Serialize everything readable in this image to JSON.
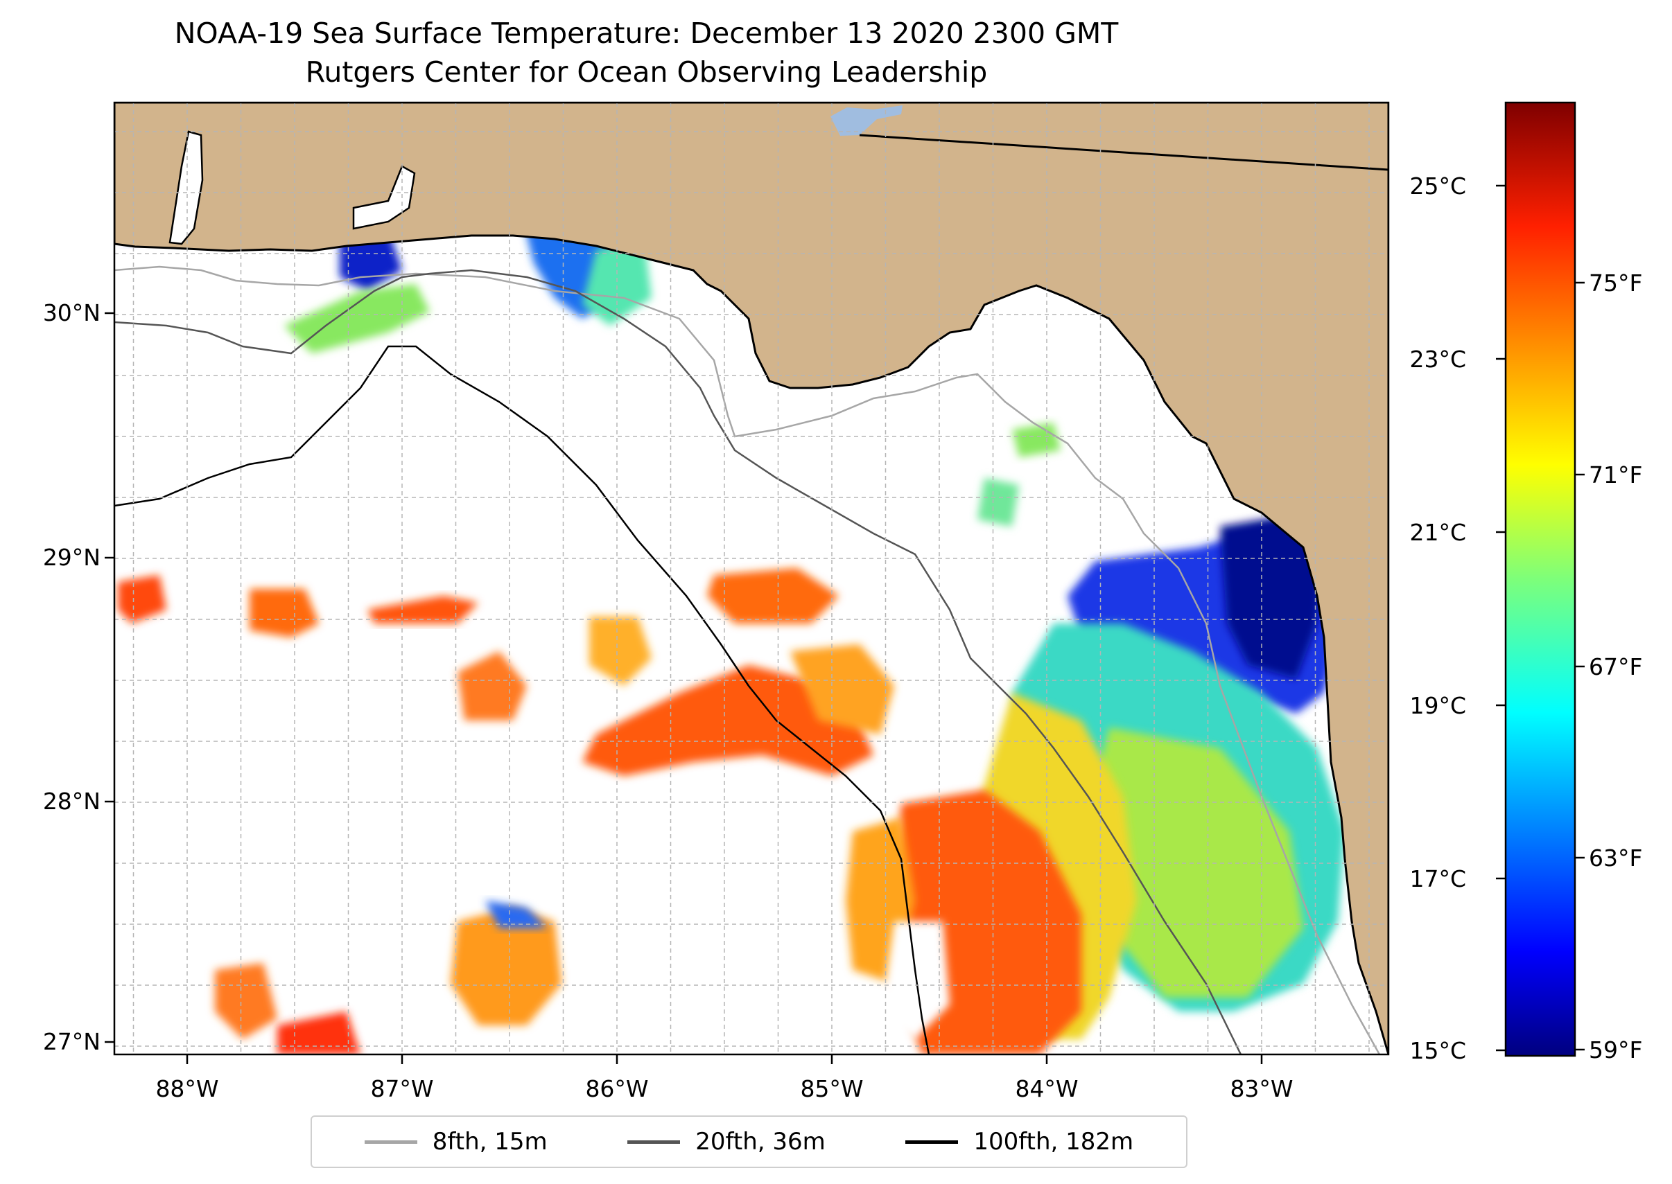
{
  "title": {
    "line1": "NOAA-19 Sea Surface Temperature: December 13 2020 2300 GMT",
    "line2": "Rutgers Center for Ocean Observing Leadership"
  },
  "axes": {
    "longitude_ticks": [
      "88°W",
      "87°W",
      "86°W",
      "85°W",
      "84°W",
      "83°W"
    ],
    "latitude_ticks": [
      "30°N",
      "29°N",
      "28°N",
      "27°N"
    ],
    "lon_range": [
      -88.33,
      -82.42
    ],
    "lat_range": [
      26.94,
      30.86
    ]
  },
  "colorbar": {
    "celsius_ticks": [
      "25°C",
      "23°C",
      "21°C",
      "19°C",
      "17°C",
      "15°C"
    ],
    "fahrenheit_ticks": [
      "75°F",
      "71°F",
      "67°F",
      "63°F",
      "59°F"
    ],
    "celsius_range": [
      15,
      26
    ],
    "colormap": "jet"
  },
  "legend": {
    "items": [
      {
        "label": "8fth, 15m",
        "color": "#a6a6a6"
      },
      {
        "label": "20fth, 36m",
        "color": "#555555"
      },
      {
        "label": "100fth, 182m",
        "color": "#000000"
      }
    ]
  },
  "colors": {
    "land": "#d2b48c",
    "water": "#ffffff",
    "lake": "#a0bde0",
    "grid": "#b5b5b5"
  }
}
